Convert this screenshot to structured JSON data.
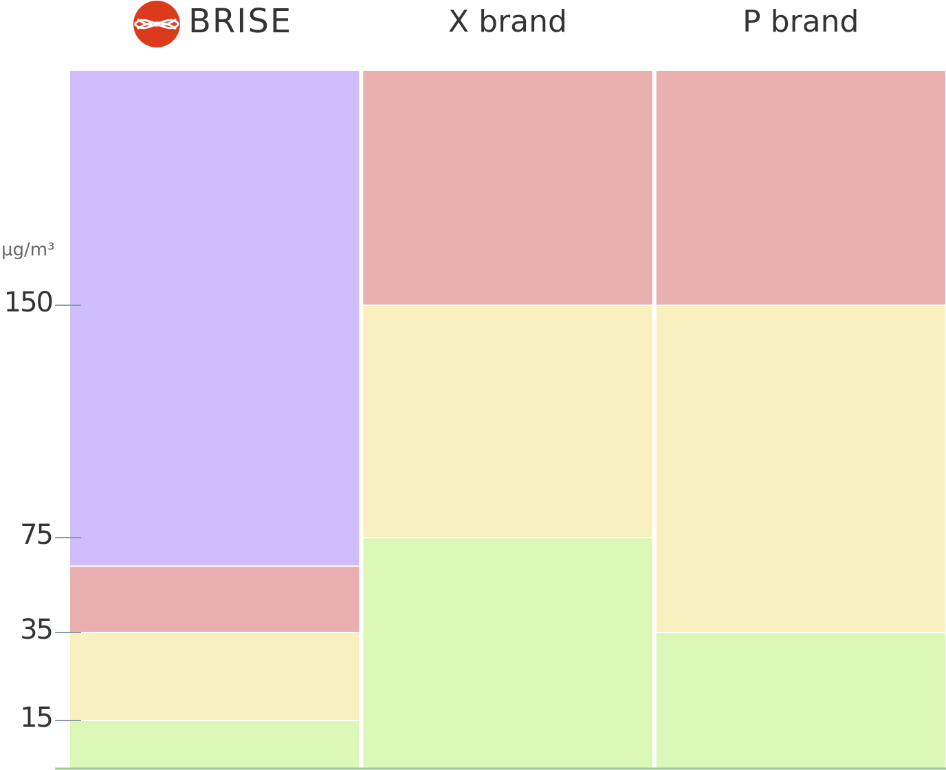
{
  "chart_data": {
    "type": "stacked_bar",
    "y_label": "µg/m³",
    "categories": [
      "BRISE",
      "X brand",
      "P brand"
    ],
    "series": [
      {
        "color": "#dcf8b8",
        "values": [
          15,
          75,
          35
        ]
      },
      {
        "color": "#f9f0c0",
        "values": [
          20,
          75,
          115
        ]
      },
      {
        "color": "#eab0b0",
        "values": [
          28,
          75,
          75
        ]
      },
      {
        "color": "#d0bdfc",
        "values": [
          162,
          null,
          null
        ]
      }
    ],
    "ylim": [
      0,
      225
    ],
    "yticks": [
      15,
      35,
      75,
      150
    ]
  }
}
